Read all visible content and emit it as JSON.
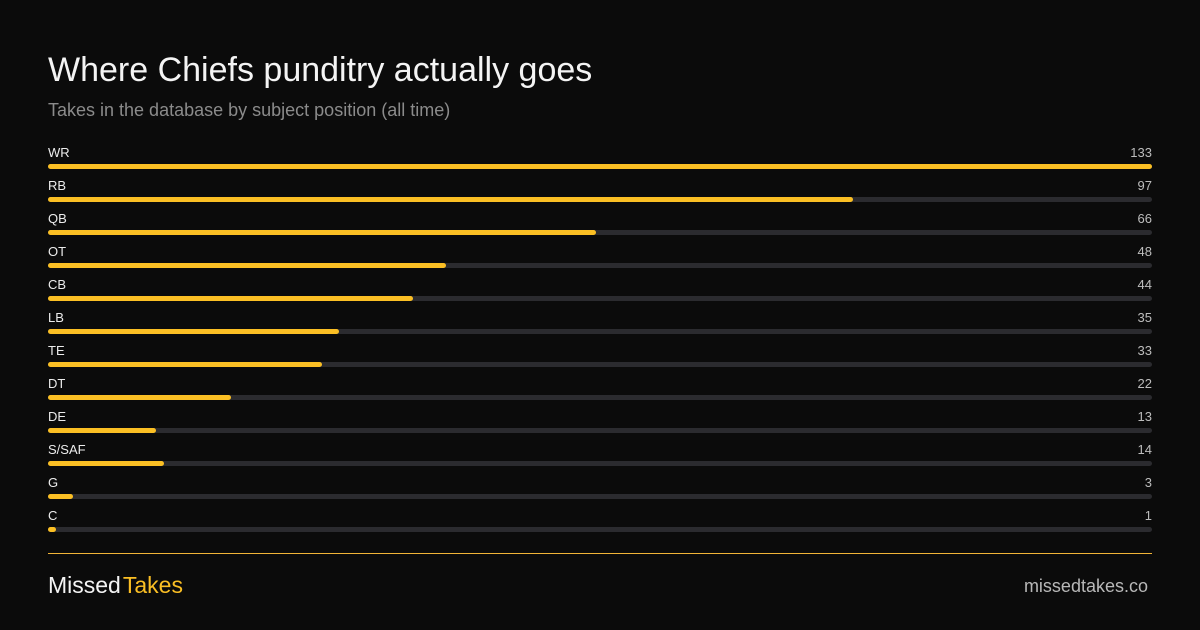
{
  "header": {
    "title": "Where Chiefs punditry actually goes",
    "subtitle": "Takes in the database by subject position (all time)"
  },
  "colors": {
    "background": "#0b0b0b",
    "accent": "#fbbf24",
    "track": "#2b2b2f",
    "divider": "#f2b437"
  },
  "chart_data": {
    "type": "bar",
    "orientation": "horizontal",
    "title": "Where Chiefs punditry actually goes",
    "subtitle": "Takes in the database by subject position (all time)",
    "categories": [
      "WR",
      "RB",
      "QB",
      "OT",
      "CB",
      "LB",
      "TE",
      "DT",
      "DE",
      "S/SAF",
      "G",
      "C"
    ],
    "values": [
      133,
      97,
      66,
      48,
      44,
      35,
      33,
      22,
      13,
      14,
      3,
      1
    ],
    "value_labels": [
      "133",
      "97",
      "66",
      "48",
      "44",
      "35",
      "33",
      "22",
      "13",
      "14",
      "3",
      "1"
    ],
    "xlim": [
      0,
      133
    ],
    "grid": false,
    "legend": "none"
  },
  "footer": {
    "brand_part1": "Missed",
    "brand_part2": "Takes",
    "domain": "missedtakes.co"
  }
}
